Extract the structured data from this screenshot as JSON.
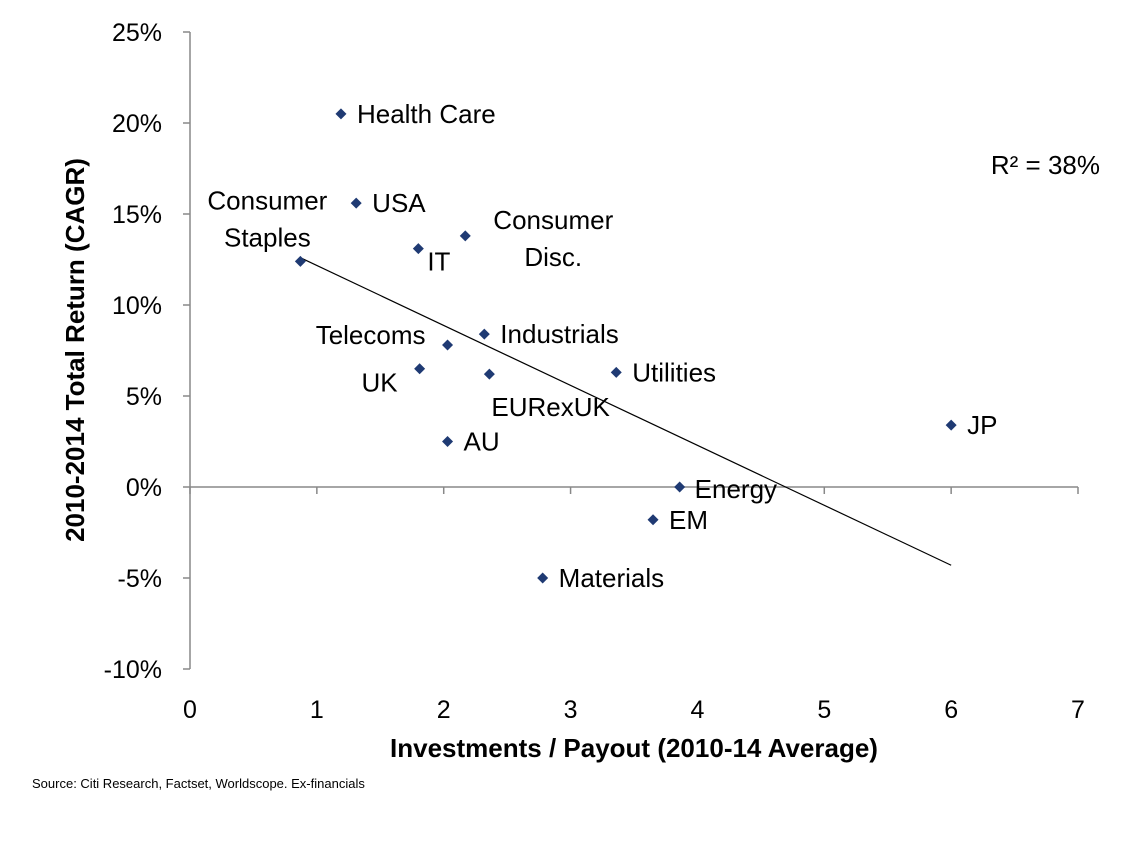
{
  "chart_data": {
    "type": "scatter",
    "title": "",
    "xlabel": "Investments / Payout (2010-14 Average)",
    "ylabel": "2010-2014 Total Return (CAGR)",
    "xlim": [
      0,
      7
    ],
    "ylim": [
      -10,
      25
    ],
    "x_ticks": [
      "0",
      "1",
      "2",
      "3",
      "4",
      "5",
      "6",
      "7"
    ],
    "y_ticks": [
      "-10%",
      "-5%",
      "0%",
      "5%",
      "10%",
      "15%",
      "20%",
      "25%"
    ],
    "grid": false,
    "marker_color": "#1f3a73",
    "points": [
      {
        "label": "Health Care",
        "x": 1.19,
        "y": 20.5
      },
      {
        "label": "USA",
        "x": 1.31,
        "y": 15.6
      },
      {
        "label": "Consumer Staples",
        "x": 0.87,
        "y": 12.4
      },
      {
        "label": "IT",
        "x": 1.8,
        "y": 13.1
      },
      {
        "label": "Consumer Disc.",
        "x": 2.17,
        "y": 13.8
      },
      {
        "label": "Telecoms",
        "x": 2.03,
        "y": 7.8
      },
      {
        "label": "Industrials",
        "x": 2.32,
        "y": 8.4
      },
      {
        "label": "UK",
        "x": 1.81,
        "y": 6.5
      },
      {
        "label": "EURexUK",
        "x": 2.36,
        "y": 6.2
      },
      {
        "label": "Utilities",
        "x": 3.36,
        "y": 6.3
      },
      {
        "label": "AU",
        "x": 2.03,
        "y": 2.5
      },
      {
        "label": "JP",
        "x": 6.0,
        "y": 3.4
      },
      {
        "label": "Energy",
        "x": 3.86,
        "y": 0.0
      },
      {
        "label": "EM",
        "x": 3.65,
        "y": -1.8
      },
      {
        "label": "Materials",
        "x": 2.78,
        "y": -5.0
      }
    ],
    "trendline": {
      "type": "linear",
      "x": [
        0.87,
        6.0
      ],
      "y": [
        12.6,
        -4.3
      ]
    },
    "annotation": "R² = 38%"
  },
  "source": "Source: Citi Research, Factset, Worldscope. Ex-financials"
}
